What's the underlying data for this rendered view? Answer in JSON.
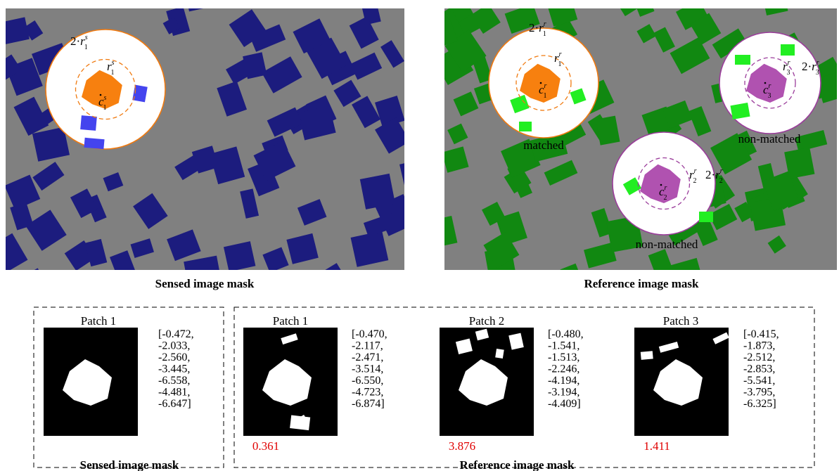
{
  "sensed_panel": {
    "caption": "Sensed image mask",
    "circle": {
      "outer_label": {
        "prefix": "2·",
        "base": "r",
        "sub": "1",
        "sup": "s"
      },
      "inner_label": {
        "base": "r",
        "sub": "1",
        "sup": "s"
      },
      "center_label": {
        "base": "c",
        "sub": "1",
        "sup": "s"
      }
    }
  },
  "reference_panel": {
    "caption": "Reference image mask",
    "circles": [
      {
        "status": "matched",
        "outer_label": {
          "prefix": "2·",
          "base": "r",
          "sub": "1",
          "sup": "r"
        },
        "inner_label": {
          "base": "r",
          "sub": "1",
          "sup": "r"
        },
        "center_label": {
          "base": "c",
          "sub": "1",
          "sup": "r"
        }
      },
      {
        "status": "non-matched",
        "outer_label": {
          "prefix": "2·",
          "base": "r",
          "sub": "2",
          "sup": "r"
        },
        "inner_label": {
          "base": "r",
          "sub": "2",
          "sup": "r"
        },
        "center_label": {
          "base": "c",
          "sub": "2",
          "sup": "r"
        }
      },
      {
        "status": "non-matched",
        "outer_label": {
          "prefix": "2·",
          "base": "r",
          "sub": "3",
          "sup": "r"
        },
        "inner_label": {
          "base": "r",
          "sub": "3",
          "sup": "r"
        },
        "center_label": {
          "base": "c",
          "sub": "3",
          "sup": "r"
        }
      }
    ]
  },
  "bottom": {
    "sensed": {
      "caption": "Sensed image mask",
      "patches": [
        {
          "title": "Patch 1",
          "vector": [
            "[-0.472,",
            "-2.033,",
            "-2.560,",
            "-3.445,",
            "-6.558,",
            "-4.481,",
            "-6.647]"
          ]
        }
      ]
    },
    "reference": {
      "caption": "Reference image mask",
      "patches": [
        {
          "title": "Patch 1",
          "vector": [
            "[-0.470,",
            "-2.117,",
            "-2.471,",
            "-3.514,",
            "-6.550,",
            "-4.723,",
            "-6.874]"
          ],
          "distance": "0.361"
        },
        {
          "title": "Patch 2",
          "vector": [
            "[-0.480,",
            "-1.541,",
            "-1.513,",
            "-2.246,",
            "-4.194,",
            "-3.194,",
            "-4.409]"
          ],
          "distance": "3.876"
        },
        {
          "title": "Patch 3",
          "vector": [
            "[-0.415,",
            "-1.873,",
            "-2.512,",
            "-2.853,",
            "-5.541,",
            "-3.795,",
            "-6.325]"
          ],
          "distance": "1.411"
        }
      ]
    }
  }
}
